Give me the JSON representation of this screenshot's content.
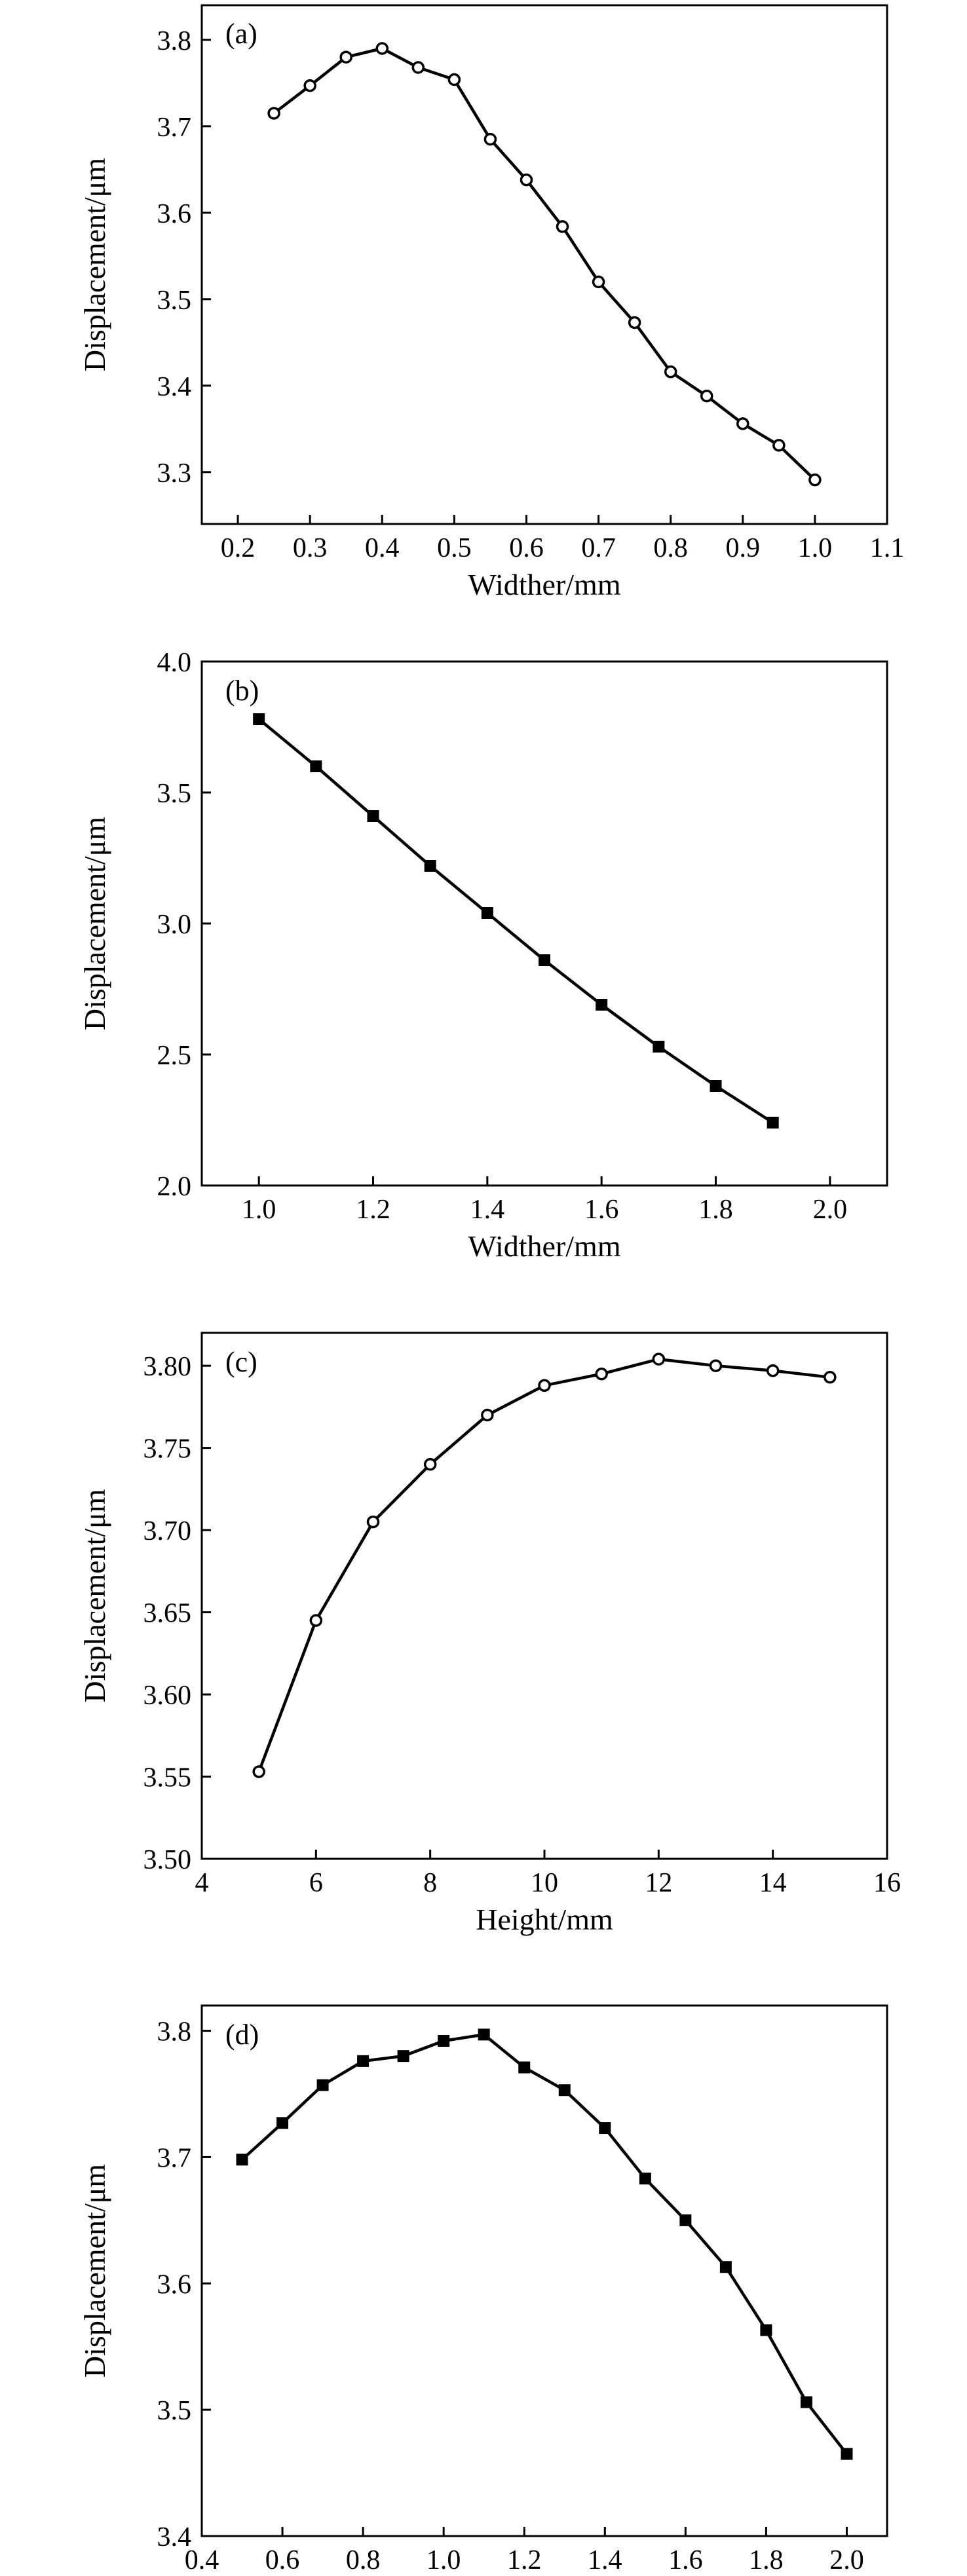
{
  "chart_data": [
    {
      "type": "line",
      "panel_label": "(a)",
      "xlabel": "Widther/mm",
      "ylabel": "Displacement/μm",
      "xlim": [
        0.15,
        1.1
      ],
      "ylim": [
        3.24,
        3.84
      ],
      "xticks": [
        0.2,
        0.3,
        0.4,
        0.5,
        0.6,
        0.7,
        0.8,
        0.9,
        1.0,
        1.1
      ],
      "xtick_labels": [
        "0.2",
        "0.3",
        "0.4",
        "0.5",
        "0.6",
        "0.7",
        "0.8",
        "0.9",
        "1.0",
        "1.1"
      ],
      "yticks": [
        3.3,
        3.4,
        3.5,
        3.6,
        3.7,
        3.8
      ],
      "ytick_labels": [
        "3.3",
        "3.4",
        "3.5",
        "3.6",
        "3.7",
        "3.8"
      ],
      "marker": "open-circle",
      "grid": false,
      "series": [
        {
          "x": [
            0.25,
            0.3,
            0.35,
            0.4,
            0.45,
            0.5,
            0.55,
            0.6,
            0.65,
            0.7,
            0.75,
            0.8,
            0.85,
            0.9,
            0.95,
            1.0
          ],
          "y": [
            3.715,
            3.747,
            3.78,
            3.79,
            3.768,
            3.754,
            3.685,
            3.638,
            3.584,
            3.52,
            3.473,
            3.416,
            3.388,
            3.356,
            3.331,
            3.291
          ]
        }
      ]
    },
    {
      "type": "line",
      "panel_label": "(b)",
      "xlabel": "Widther/mm",
      "ylabel": "Displacement/μm",
      "xlim": [
        0.9,
        2.1
      ],
      "ylim": [
        2.0,
        4.0
      ],
      "xticks": [
        1.0,
        1.2,
        1.4,
        1.6,
        1.8,
        2.0
      ],
      "xtick_labels": [
        "1.0",
        "1.2",
        "1.4",
        "1.6",
        "1.8",
        "2.0"
      ],
      "yticks": [
        2.0,
        2.5,
        3.0,
        3.5,
        4.0
      ],
      "ytick_labels": [
        "2.0",
        "2.5",
        "3.0",
        "3.5",
        "4.0"
      ],
      "marker": "filled-square",
      "grid": false,
      "series": [
        {
          "x": [
            1.0,
            1.1,
            1.2,
            1.3,
            1.4,
            1.5,
            1.6,
            1.7,
            1.8,
            1.9
          ],
          "y": [
            3.78,
            3.6,
            3.41,
            3.22,
            3.04,
            2.86,
            2.69,
            2.53,
            2.38,
            2.24
          ]
        }
      ]
    },
    {
      "type": "line",
      "panel_label": "(c)",
      "xlabel": "Height/mm",
      "ylabel": "Displacement/μm",
      "xlim": [
        4,
        16
      ],
      "ylim": [
        3.5,
        3.82
      ],
      "xticks": [
        4,
        6,
        8,
        10,
        12,
        14,
        16
      ],
      "xtick_labels": [
        "4",
        "6",
        "8",
        "10",
        "12",
        "14",
        "16"
      ],
      "yticks": [
        3.5,
        3.55,
        3.6,
        3.65,
        3.7,
        3.75,
        3.8
      ],
      "ytick_labels": [
        "3.50",
        "3.55",
        "3.60",
        "3.65",
        "3.70",
        "3.75",
        "3.80"
      ],
      "marker": "open-circle",
      "grid": false,
      "series": [
        {
          "x": [
            5,
            6,
            7,
            8,
            9,
            10,
            11,
            12,
            13,
            14,
            15
          ],
          "y": [
            3.553,
            3.645,
            3.705,
            3.74,
            3.77,
            3.788,
            3.795,
            3.804,
            3.8,
            3.797,
            3.793
          ]
        }
      ]
    },
    {
      "type": "line",
      "panel_label": "(d)",
      "xlabel": "Widther/mm",
      "ylabel": "Displacement/μm",
      "xlim": [
        0.4,
        2.1
      ],
      "ylim": [
        3.4,
        3.82
      ],
      "xticks": [
        0.4,
        0.6,
        0.8,
        1.0,
        1.2,
        1.4,
        1.6,
        1.8,
        2.0
      ],
      "xtick_labels": [
        "0.4",
        "0.6",
        "0.8",
        "1.0",
        "1.2",
        "1.4",
        "1.6",
        "1.8",
        "2.0"
      ],
      "yticks": [
        3.4,
        3.5,
        3.6,
        3.7,
        3.8
      ],
      "ytick_labels": [
        "3.4",
        "3.5",
        "3.6",
        "3.7",
        "3.8"
      ],
      "marker": "filled-square",
      "grid": false,
      "series": [
        {
          "x": [
            0.5,
            0.6,
            0.7,
            0.8,
            0.9,
            1.0,
            1.1,
            1.2,
            1.3,
            1.4,
            1.5,
            1.6,
            1.7,
            1.8,
            1.9,
            2.0
          ],
          "y": [
            3.698,
            3.727,
            3.757,
            3.776,
            3.78,
            3.792,
            3.797,
            3.771,
            3.753,
            3.723,
            3.683,
            3.65,
            3.613,
            3.563,
            3.506,
            3.465
          ]
        }
      ]
    }
  ]
}
